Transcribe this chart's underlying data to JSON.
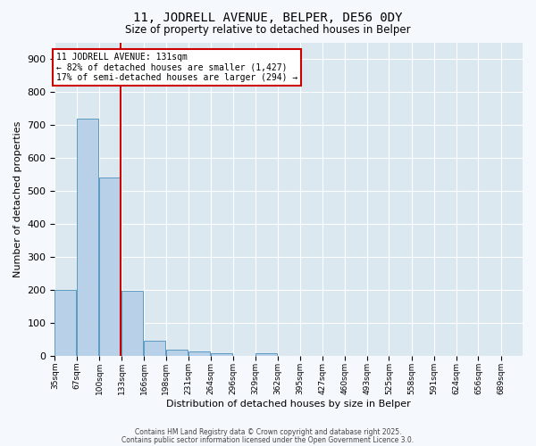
{
  "title1": "11, JODRELL AVENUE, BELPER, DE56 0DY",
  "title2": "Size of property relative to detached houses in Belper",
  "xlabel": "Distribution of detached houses by size in Belper",
  "ylabel": "Number of detached properties",
  "bins": [
    35,
    67,
    100,
    133,
    166,
    198,
    231,
    264,
    296,
    329,
    362,
    395,
    427,
    460,
    493,
    525,
    558,
    591,
    624,
    656,
    689
  ],
  "bin_labels": [
    "35sqm",
    "67sqm",
    "100sqm",
    "133sqm",
    "166sqm",
    "198sqm",
    "231sqm",
    "264sqm",
    "296sqm",
    "329sqm",
    "362sqm",
    "395sqm",
    "427sqm",
    "460sqm",
    "493sqm",
    "525sqm",
    "558sqm",
    "591sqm",
    "624sqm",
    "656sqm",
    "689sqm"
  ],
  "counts": [
    200,
    720,
    540,
    198,
    48,
    20,
    14,
    9,
    0,
    8,
    0,
    0,
    0,
    0,
    0,
    0,
    0,
    0,
    0,
    0
  ],
  "bar_color": "#b8d0e8",
  "bar_edge_color": "#5a9abf",
  "property_line_x": 131,
  "property_line_color": "#cc0000",
  "annotation_line1": "11 JODRELL AVENUE: 131sqm",
  "annotation_line2": "← 82% of detached houses are smaller (1,427)",
  "annotation_line3": "17% of semi-detached houses are larger (294) →",
  "annotation_box_color": "#cc0000",
  "ylim": [
    0,
    950
  ],
  "yticks": [
    0,
    100,
    200,
    300,
    400,
    500,
    600,
    700,
    800,
    900
  ],
  "background_color": "#dce8f0",
  "grid_color": "#ffffff",
  "fig_bg_color": "#f5f8fc",
  "footer1": "Contains HM Land Registry data © Crown copyright and database right 2025.",
  "footer2": "Contains public sector information licensed under the Open Government Licence 3.0."
}
